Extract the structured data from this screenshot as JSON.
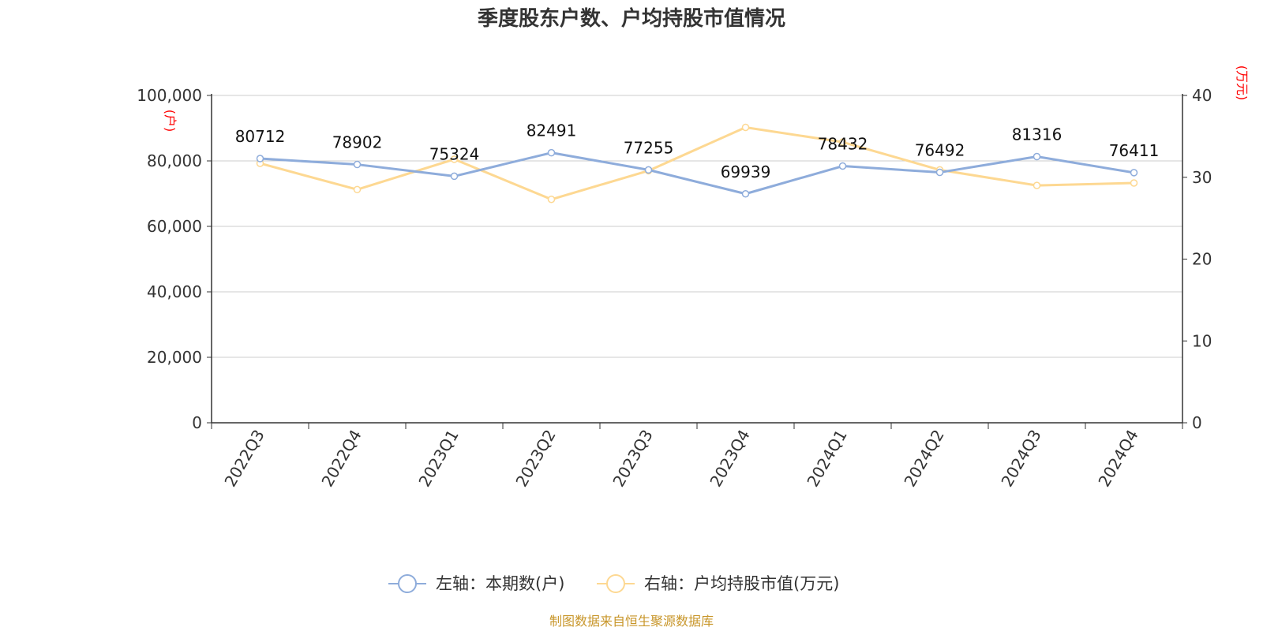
{
  "chart_data": {
    "type": "line",
    "title": "季度股东户数、户均持股市值情况",
    "categories": [
      "2022Q3",
      "2022Q4",
      "2023Q1",
      "2023Q2",
      "2023Q3",
      "2023Q4",
      "2024Q1",
      "2024Q2",
      "2024Q3",
      "2024Q4"
    ],
    "series": [
      {
        "name": "左轴：本期数(户)",
        "axis": "left",
        "color": "#8eacdb",
        "values": [
          80712,
          78902,
          75324,
          82491,
          77255,
          69939,
          78432,
          76492,
          81316,
          76411
        ],
        "data_labels": [
          "80712",
          "78902",
          "75324",
          "82491",
          "77255",
          "69939",
          "78432",
          "76492",
          "81316",
          "76411"
        ]
      },
      {
        "name": "右轴：户均持股市值(万元)",
        "axis": "right",
        "color": "#fdd892",
        "values": [
          31.7,
          28.5,
          32.2,
          27.3,
          30.8,
          36.1,
          34.3,
          30.9,
          29.0,
          29.3
        ]
      }
    ],
    "y_left": {
      "unit": "(户)",
      "range": [
        0,
        100000
      ],
      "ticks": [
        0,
        20000,
        40000,
        60000,
        80000,
        100000
      ],
      "tick_labels": [
        "0",
        "20,000",
        "40,000",
        "60,000",
        "80,000",
        "100,000"
      ]
    },
    "y_right": {
      "unit": "(万元)",
      "range": [
        0,
        40
      ],
      "ticks": [
        0,
        10,
        20,
        30,
        40
      ],
      "tick_labels": [
        "0",
        "10",
        "20",
        "30",
        "40"
      ]
    },
    "grid": true,
    "legend_position": "bottom-center",
    "source": "制图数据来自恒生聚源数据库"
  }
}
